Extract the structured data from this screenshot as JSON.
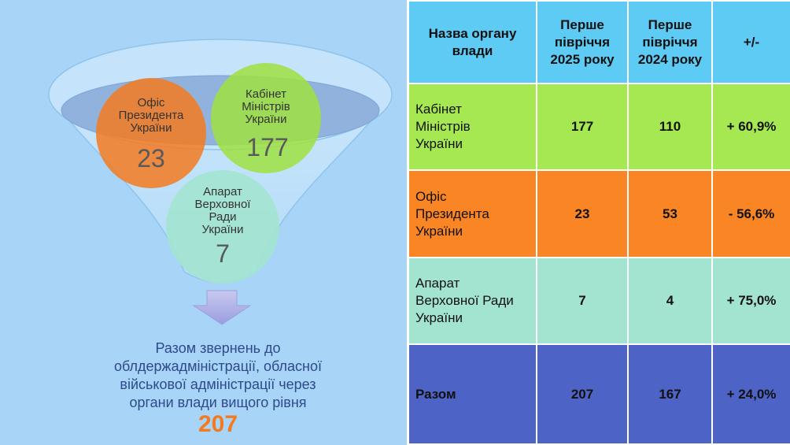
{
  "funnel": {
    "circles": [
      {
        "label_lines": [
          "Офіс",
          "Президента",
          "України"
        ],
        "value": "23",
        "color": "#f47a20"
      },
      {
        "label_lines": [
          "Кабінет",
          "Міністрів",
          "України"
        ],
        "value": "177",
        "color": "#9fe03f"
      },
      {
        "label_lines": [
          "Апарат",
          "Верховної",
          "Ради",
          "України"
        ],
        "value": "7",
        "color": "#a3e4d0"
      }
    ]
  },
  "summary": {
    "lines": [
      "Разом звернень до",
      "облдержадміністрації, обласної",
      "військової адміністрації через",
      "органи влади вищого рівня"
    ],
    "total": "207"
  },
  "table": {
    "headers": [
      [
        "Назва органу",
        "влади"
      ],
      [
        "Перше",
        "півріччя",
        "2025 року"
      ],
      [
        "Перше",
        "півріччя",
        "2024 року"
      ],
      [
        "+/-"
      ]
    ],
    "rows": [
      {
        "name_lines": [
          "Кабінет",
          "Міністрів",
          "України"
        ],
        "v2025": "177",
        "v2024": "110",
        "change": "+ 60,9%"
      },
      {
        "name_lines": [
          "Офіс",
          "Президента",
          "України"
        ],
        "v2025": "23",
        "v2024": "53",
        "change": "- 56,6%"
      },
      {
        "name_lines": [
          "Апарат",
          "Верховної Ради",
          "України"
        ],
        "v2025": "7",
        "v2024": "4",
        "change": "+ 75,0%"
      },
      {
        "name_lines": [
          "Разом"
        ],
        "v2025": "207",
        "v2024": "167",
        "change": "+ 24,0%"
      }
    ]
  },
  "colors": {
    "panel_bg": "#a7d4f7",
    "header_bg": "#5ecbf5",
    "row_green": "#a5e852",
    "row_orange": "#fa8525",
    "row_mint": "#a3e4d0",
    "row_total": "#4e63c6",
    "accent_total": "#f47a20"
  }
}
